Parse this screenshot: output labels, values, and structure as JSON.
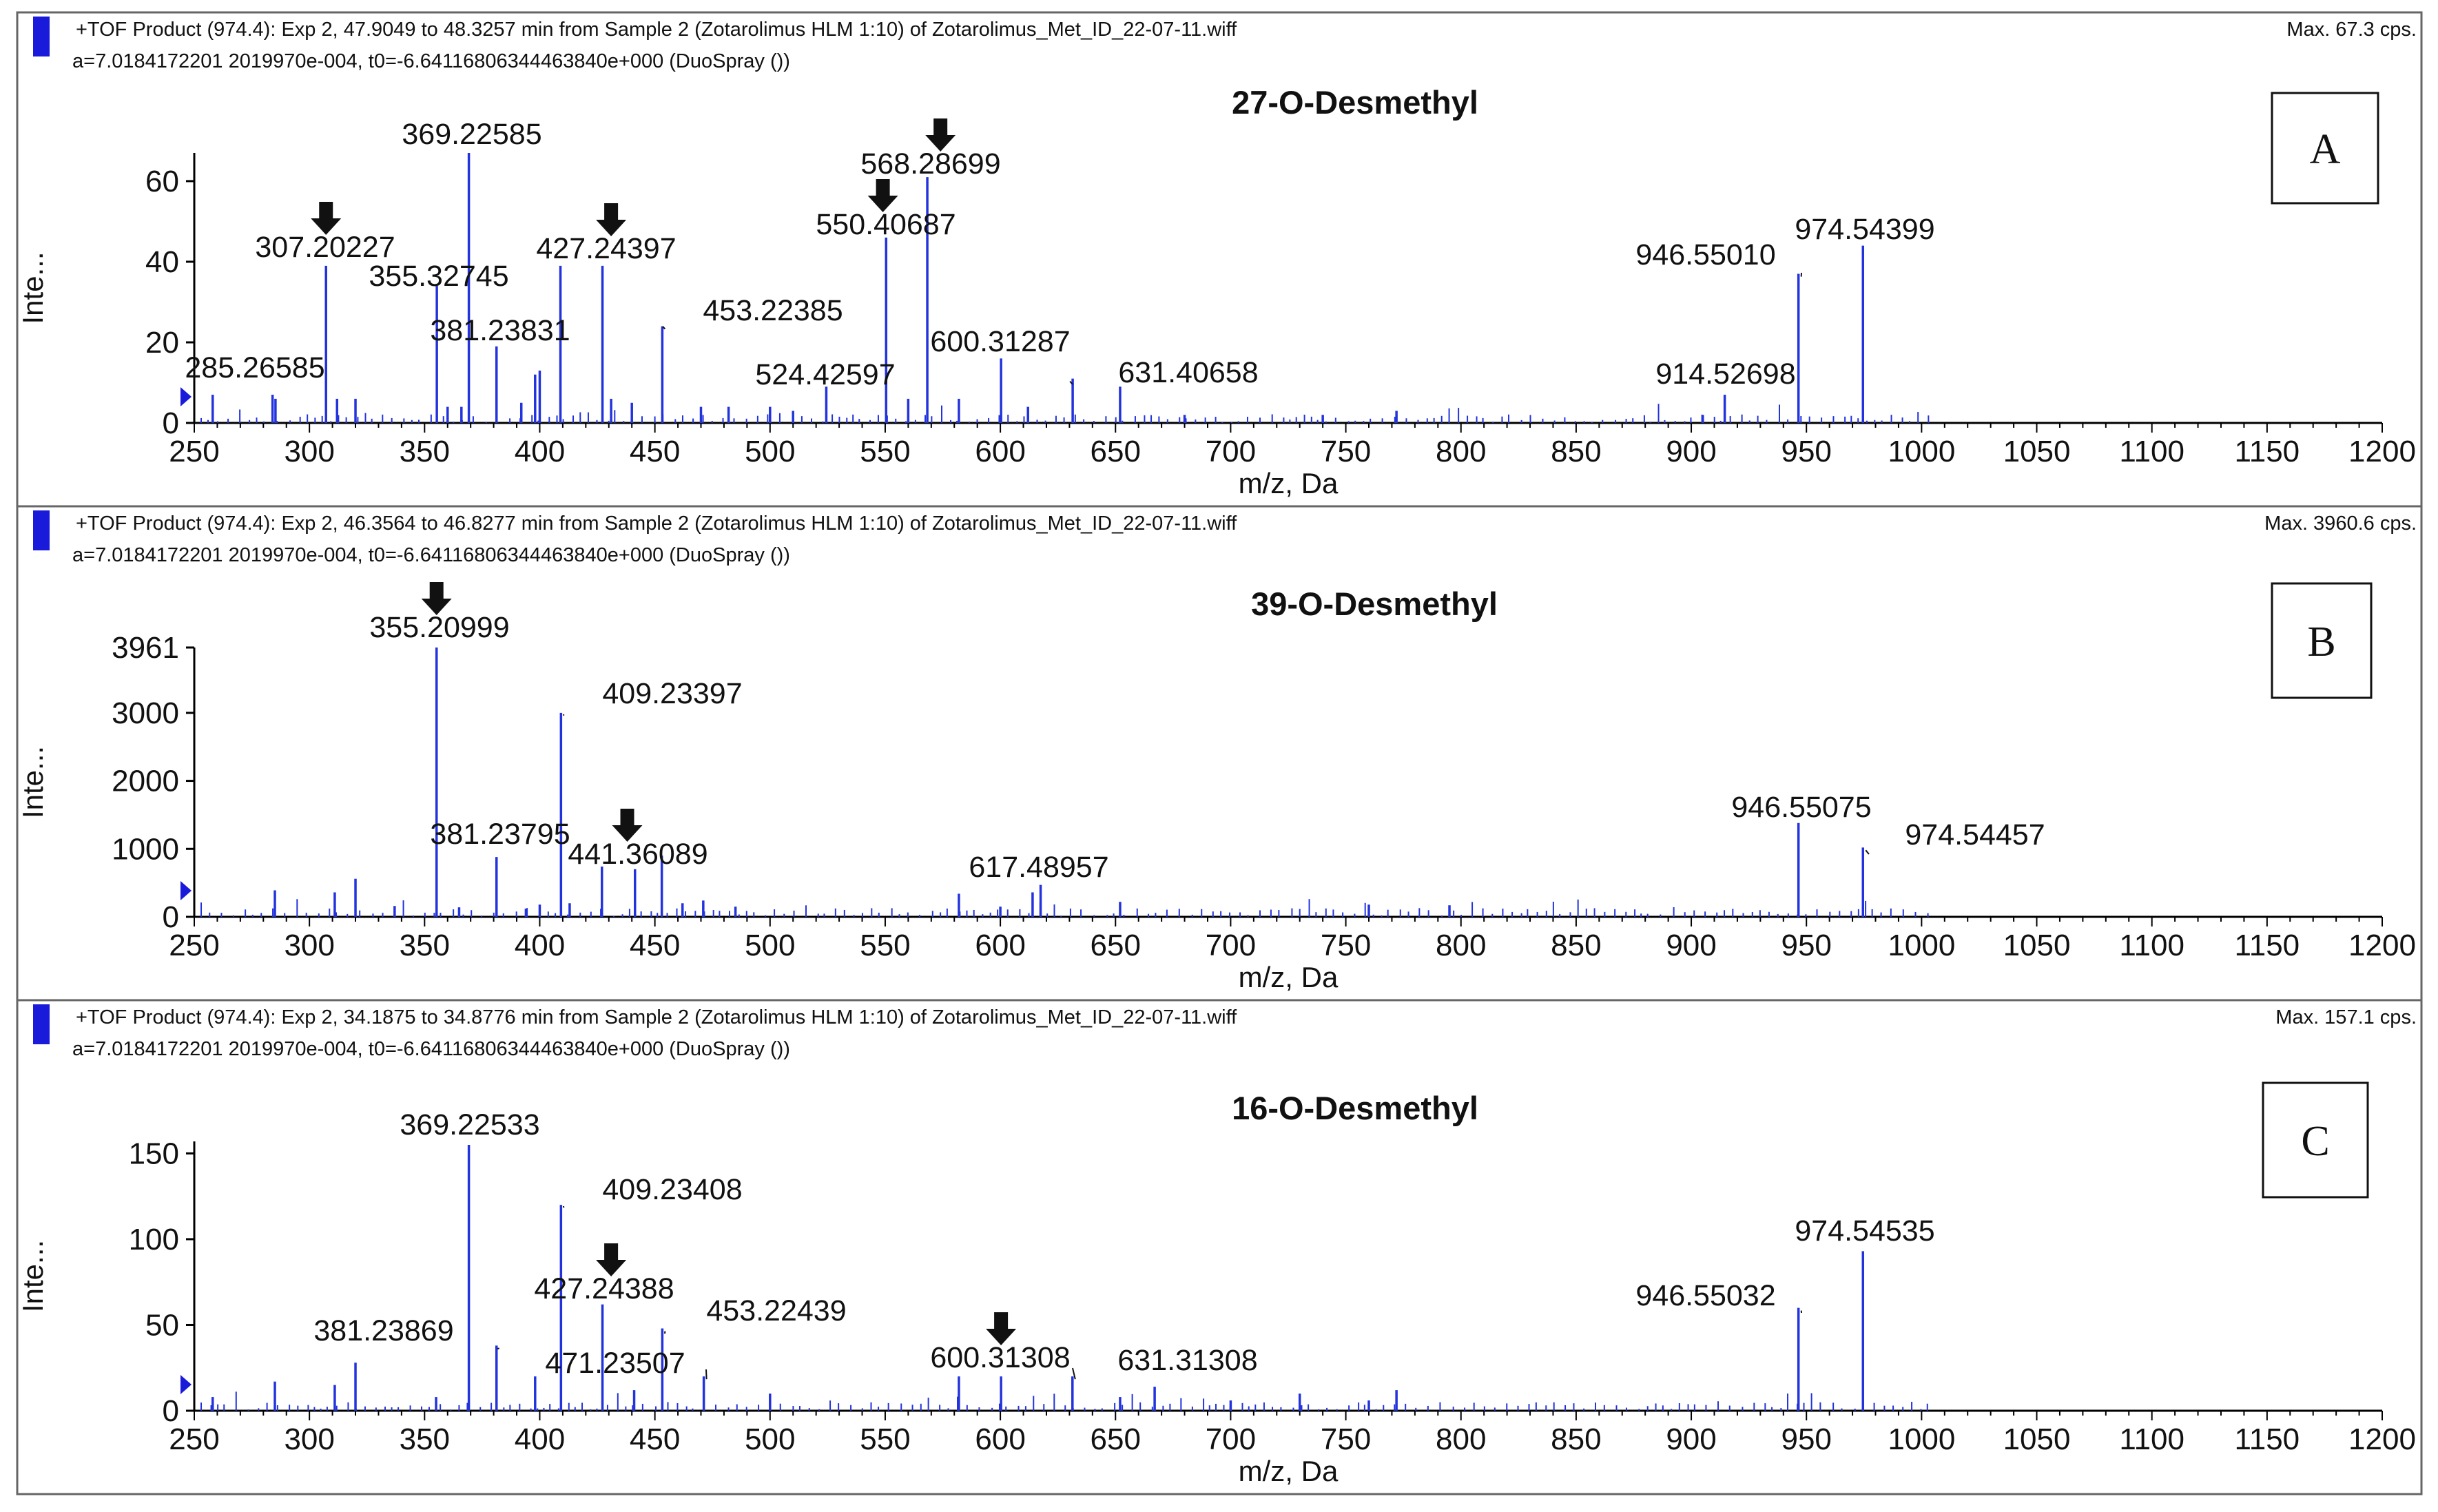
{
  "colors": {
    "spectrum": "#2233dd",
    "header_bar": "#1a1adb",
    "frame": "#666666",
    "axis": "#000000",
    "arrow": "#111111"
  },
  "chart_data": [
    {
      "type": "bar",
      "panel_letter": "A",
      "header_line1": "+TOF Product (974.4): Exp 2, 47.9049 to 48.3257 min from Sample 2 (Zotarolimus HLM 1:10) of Zotarolimus_Met_ID_22-07-11.wiff",
      "header_line2": "a=7.0184172201 2019970e-004, t0=-6.64116806344463840e+000 (DuoSpray ())",
      "max_label": "Max. 67.3 cps.",
      "title": "27-O-Desmethyl",
      "xlabel": "m/z, Da",
      "ylabel": "Inte...",
      "xlim": [
        250,
        1200
      ],
      "ylim": [
        0,
        67
      ],
      "x_ticks": [
        250,
        300,
        350,
        400,
        450,
        500,
        550,
        600,
        650,
        700,
        750,
        800,
        850,
        900,
        950,
        1000,
        1050,
        1100,
        1150,
        1200
      ],
      "y_ticks": [
        0,
        20,
        40,
        60
      ],
      "peaks": [
        {
          "mz": 258,
          "i": 7
        },
        {
          "mz": 284,
          "i": 7
        },
        {
          "mz": 285.26585,
          "i": 6,
          "label": "285.26585"
        },
        {
          "mz": 307.20227,
          "i": 39,
          "label": "307.20227",
          "arrow": true
        },
        {
          "mz": 312,
          "i": 6
        },
        {
          "mz": 320,
          "i": 6
        },
        {
          "mz": 355.32745,
          "i": 34,
          "label": "355.32745"
        },
        {
          "mz": 360,
          "i": 4
        },
        {
          "mz": 366,
          "i": 4
        },
        {
          "mz": 369.22585,
          "i": 67,
          "label": "369.22585"
        },
        {
          "mz": 381.23831,
          "i": 19,
          "label": "381.23831"
        },
        {
          "mz": 392,
          "i": 5
        },
        {
          "mz": 398,
          "i": 12
        },
        {
          "mz": 400,
          "i": 13
        },
        {
          "mz": 409,
          "i": 39
        },
        {
          "mz": 427.24397,
          "i": 39,
          "label": "427.24397",
          "arrow": true
        },
        {
          "mz": 431,
          "i": 6
        },
        {
          "mz": 440,
          "i": 5
        },
        {
          "mz": 453.22385,
          "i": 24,
          "label": "453.22385"
        },
        {
          "mz": 470,
          "i": 4
        },
        {
          "mz": 482,
          "i": 4
        },
        {
          "mz": 500,
          "i": 4
        },
        {
          "mz": 510,
          "i": 3
        },
        {
          "mz": 524.42597,
          "i": 9,
          "label": "524.42597"
        },
        {
          "mz": 550.40687,
          "i": 46,
          "label": "550.40687",
          "arrow": true
        },
        {
          "mz": 560,
          "i": 6
        },
        {
          "mz": 568.28699,
          "i": 61,
          "label": "568.28699",
          "arrow": true
        },
        {
          "mz": 582,
          "i": 6
        },
        {
          "mz": 600.31287,
          "i": 16,
          "label": "600.31287"
        },
        {
          "mz": 612,
          "i": 4
        },
        {
          "mz": 631.40658,
          "i": 11,
          "label": "631.40658"
        },
        {
          "mz": 652,
          "i": 9
        },
        {
          "mz": 680,
          "i": 2
        },
        {
          "mz": 740,
          "i": 2
        },
        {
          "mz": 772,
          "i": 3
        },
        {
          "mz": 905,
          "i": 2
        },
        {
          "mz": 914.52698,
          "i": 7,
          "label": "914.52698"
        },
        {
          "mz": 946.5501,
          "i": 37,
          "label": "946.55010"
        },
        {
          "mz": 974.54399,
          "i": 44,
          "label": "974.54399"
        }
      ]
    },
    {
      "type": "bar",
      "panel_letter": "B",
      "header_line1": "+TOF Product (974.4): Exp 2, 46.3564 to 46.8277 min from Sample 2 (Zotarolimus HLM 1:10) of Zotarolimus_Met_ID_22-07-11.wiff",
      "header_line2": "a=7.0184172201 2019970e-004, t0=-6.64116806344463840e+000 (DuoSpray ())",
      "max_label": "Max. 3960.6 cps.",
      "title": "39-O-Desmethyl",
      "xlabel": "m/z, Da",
      "ylabel": "Inte...",
      "xlim": [
        250,
        1200
      ],
      "ylim": [
        0,
        3961
      ],
      "x_ticks": [
        250,
        300,
        350,
        400,
        450,
        500,
        550,
        600,
        650,
        700,
        750,
        800,
        850,
        900,
        950,
        1000,
        1050,
        1100,
        1150,
        1200
      ],
      "y_ticks": [
        0,
        1000,
        2000,
        3000,
        3961
      ],
      "peaks": [
        {
          "mz": 285,
          "i": 390
        },
        {
          "mz": 311,
          "i": 360
        },
        {
          "mz": 320,
          "i": 560
        },
        {
          "mz": 337,
          "i": 160
        },
        {
          "mz": 355.20999,
          "i": 3961,
          "label": "355.20999",
          "arrow": true
        },
        {
          "mz": 365,
          "i": 140
        },
        {
          "mz": 381.23795,
          "i": 880,
          "label": "381.23795"
        },
        {
          "mz": 394,
          "i": 120
        },
        {
          "mz": 400,
          "i": 180
        },
        {
          "mz": 409.23397,
          "i": 3000,
          "label": "409.23397"
        },
        {
          "mz": 413,
          "i": 200
        },
        {
          "mz": 427,
          "i": 740
        },
        {
          "mz": 441.36089,
          "i": 700,
          "label": "441.36089",
          "arrow": true
        },
        {
          "mz": 453,
          "i": 900
        },
        {
          "mz": 462,
          "i": 200
        },
        {
          "mz": 471,
          "i": 240
        },
        {
          "mz": 485,
          "i": 150
        },
        {
          "mz": 582,
          "i": 340
        },
        {
          "mz": 600,
          "i": 150
        },
        {
          "mz": 614,
          "i": 360
        },
        {
          "mz": 617.48957,
          "i": 470,
          "label": "617.48957"
        },
        {
          "mz": 652,
          "i": 220
        },
        {
          "mz": 760,
          "i": 180
        },
        {
          "mz": 795,
          "i": 170
        },
        {
          "mz": 946.55075,
          "i": 1380,
          "label": "946.55075"
        },
        {
          "mz": 974.54457,
          "i": 1020,
          "label": "974.54457"
        }
      ]
    },
    {
      "type": "bar",
      "panel_letter": "C",
      "header_line1": "+TOF Product (974.4): Exp 2, 34.1875 to 34.8776 min from Sample 2 (Zotarolimus HLM 1:10) of Zotarolimus_Met_ID_22-07-11.wiff",
      "header_line2": "a=7.0184172201 2019970e-004, t0=-6.64116806344463840e+000 (DuoSpray ())",
      "max_label": "Max. 157.1 cps.",
      "title": "16-O-Desmethyl",
      "xlabel": "m/z, Da",
      "ylabel": "Inte...",
      "xlim": [
        250,
        1200
      ],
      "ylim": [
        0,
        157
      ],
      "x_ticks": [
        250,
        300,
        350,
        400,
        450,
        500,
        550,
        600,
        650,
        700,
        750,
        800,
        850,
        900,
        950,
        1000,
        1050,
        1100,
        1150,
        1200
      ],
      "y_ticks": [
        0,
        50,
        100,
        150
      ],
      "peaks": [
        {
          "mz": 258,
          "i": 8
        },
        {
          "mz": 285,
          "i": 17
        },
        {
          "mz": 311,
          "i": 15
        },
        {
          "mz": 320,
          "i": 28
        },
        {
          "mz": 355,
          "i": 8
        },
        {
          "mz": 369.22533,
          "i": 155,
          "label": "369.22533"
        },
        {
          "mz": 381.23869,
          "i": 38,
          "label": "381.23869"
        },
        {
          "mz": 398,
          "i": 20
        },
        {
          "mz": 409.23408,
          "i": 120,
          "label": "409.23408"
        },
        {
          "mz": 427.24388,
          "i": 62,
          "label": "427.24388",
          "arrow": true
        },
        {
          "mz": 441,
          "i": 12
        },
        {
          "mz": 453.22439,
          "i": 48,
          "label": "453.22439"
        },
        {
          "mz": 471.23507,
          "i": 20,
          "label": "471.23507"
        },
        {
          "mz": 500,
          "i": 10
        },
        {
          "mz": 582,
          "i": 20
        },
        {
          "mz": 600.31308,
          "i": 20,
          "label": "600.31308",
          "arrow": true
        },
        {
          "mz": 631.31308,
          "i": 20,
          "label": "631.31308"
        },
        {
          "mz": 652,
          "i": 8
        },
        {
          "mz": 667,
          "i": 14
        },
        {
          "mz": 700,
          "i": 6
        },
        {
          "mz": 730,
          "i": 10
        },
        {
          "mz": 760,
          "i": 6
        },
        {
          "mz": 772,
          "i": 12
        },
        {
          "mz": 946.55032,
          "i": 60,
          "label": "946.55032"
        },
        {
          "mz": 974.54535,
          "i": 93,
          "label": "974.54535"
        }
      ]
    }
  ]
}
